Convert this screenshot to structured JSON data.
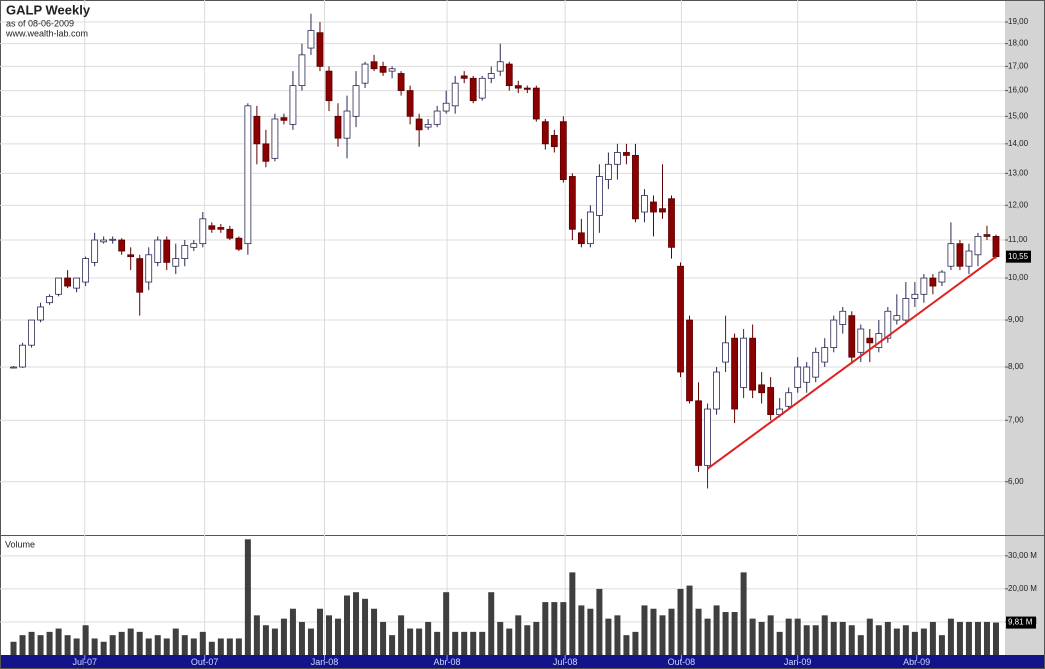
{
  "chart_data": [
    {
      "type": "candlestick",
      "title": "GALP Weekly",
      "subtitle": "as of 08-06-2009",
      "source": "www.wealth-lab.com",
      "up_color": "#ffffff",
      "down_color": "#8b0000",
      "log_scale": true,
      "grid": true,
      "xlim": [
        -1.5,
        110
      ],
      "xticks": [
        {
          "value": 7.9,
          "label": "Jul-07"
        },
        {
          "value": 21.2,
          "label": "Out-07"
        },
        {
          "value": 34.5,
          "label": "Jan-08"
        },
        {
          "value": 48.1,
          "label": "Abr-08"
        },
        {
          "value": 61.2,
          "label": "Jul-08"
        },
        {
          "value": 74.1,
          "label": "Out-08"
        },
        {
          "value": 87.0,
          "label": "Jan-09"
        },
        {
          "value": 100.2,
          "label": "Abr-09"
        }
      ],
      "ylim": [
        5.25,
        20.08
      ],
      "yticks": [
        {
          "value": 6,
          "label": "6,00"
        },
        {
          "value": 7,
          "label": "7,00"
        },
        {
          "value": 8,
          "label": "8,00"
        },
        {
          "value": 9,
          "label": "9,00"
        },
        {
          "value": 10,
          "label": "10,00"
        },
        {
          "value": 11,
          "label": "11,00"
        },
        {
          "value": 12,
          "label": "12,00"
        },
        {
          "value": 13,
          "label": "13,00"
        },
        {
          "value": 14,
          "label": "14,00"
        },
        {
          "value": 15,
          "label": "15,00"
        },
        {
          "value": 16,
          "label": "16,00"
        },
        {
          "value": 17,
          "label": "17,00"
        },
        {
          "value": 18,
          "label": "18,00"
        },
        {
          "value": 19,
          "label": "19,00"
        }
      ],
      "open": [
        7.98,
        8.0,
        8.45,
        9.0,
        9.4,
        9.6,
        10.0,
        9.75,
        9.9,
        10.4,
        10.95,
        11.0,
        11.0,
        10.6,
        10.5,
        9.9,
        10.4,
        11.0,
        10.3,
        10.5,
        10.8,
        10.9,
        11.4,
        11.35,
        11.3,
        11.05,
        10.9,
        15.0,
        14.0,
        13.5,
        14.95,
        14.7,
        16.2,
        17.8,
        18.5,
        16.8,
        15.0,
        14.2,
        15.0,
        16.3,
        17.2,
        17.0,
        16.8,
        16.7,
        16.0,
        14.9,
        14.6,
        14.7,
        15.2,
        15.4,
        16.6,
        16.5,
        15.7,
        16.5,
        16.8,
        17.1,
        16.2,
        16.1,
        16.1,
        14.8,
        14.3,
        14.8,
        12.9,
        11.2,
        10.9,
        11.7,
        12.8,
        13.3,
        13.7,
        13.6,
        11.8,
        12.1,
        11.9,
        12.2,
        10.3,
        9.0,
        7.35,
        6.25,
        7.2,
        8.1,
        8.6,
        7.6,
        8.6,
        7.65,
        7.6,
        7.1,
        7.25,
        7.6,
        7.7,
        7.8,
        8.1,
        8.4,
        8.9,
        9.1,
        8.3,
        8.6,
        8.4,
        8.6,
        9.0,
        9.0,
        9.5,
        9.6,
        10.0,
        9.9,
        10.3,
        10.9,
        10.3,
        10.6,
        11.15,
        11.1
      ],
      "high": [
        8.02,
        8.5,
        9.0,
        9.4,
        9.6,
        10.0,
        10.2,
        10.0,
        10.55,
        11.2,
        11.1,
        11.1,
        11.05,
        10.8,
        10.6,
        10.8,
        11.1,
        11.1,
        10.9,
        11.0,
        11.0,
        11.8,
        11.5,
        11.45,
        11.4,
        11.1,
        15.5,
        15.4,
        14.5,
        15.1,
        15.1,
        16.8,
        18.0,
        19.4,
        19.0,
        17.0,
        15.5,
        15.8,
        16.8,
        17.2,
        17.5,
        17.2,
        17.0,
        16.8,
        16.2,
        15.1,
        14.9,
        15.4,
        16.0,
        16.6,
        16.8,
        16.6,
        16.6,
        17.0,
        18.0,
        17.2,
        16.4,
        16.2,
        16.2,
        14.9,
        14.5,
        15.0,
        13.0,
        11.6,
        12.0,
        13.3,
        13.7,
        14.0,
        14.0,
        14.0,
        12.5,
        12.3,
        13.3,
        12.3,
        10.4,
        9.1,
        7.7,
        7.3,
        8.0,
        9.1,
        8.7,
        8.8,
        8.9,
        7.9,
        7.8,
        7.4,
        7.6,
        8.2,
        8.1,
        8.4,
        8.6,
        9.1,
        9.3,
        9.2,
        8.9,
        8.8,
        9.0,
        9.3,
        9.6,
        9.9,
        9.9,
        10.1,
        10.1,
        10.2,
        11.5,
        11.0,
        10.9,
        11.2,
        11.4,
        11.15
      ],
      "low": [
        7.97,
        7.98,
        8.4,
        8.95,
        9.35,
        9.55,
        9.75,
        9.65,
        9.8,
        10.3,
        10.9,
        10.9,
        10.6,
        10.2,
        9.1,
        9.7,
        10.3,
        10.2,
        10.1,
        10.3,
        10.7,
        10.8,
        11.2,
        11.2,
        11.0,
        10.7,
        10.6,
        13.3,
        13.2,
        13.4,
        14.7,
        14.5,
        16.0,
        17.5,
        16.8,
        15.2,
        13.9,
        13.5,
        14.6,
        16.1,
        16.8,
        16.6,
        16.5,
        15.8,
        14.7,
        13.9,
        14.5,
        14.6,
        15.1,
        15.1,
        16.3,
        15.5,
        15.6,
        16.3,
        16.6,
        16.0,
        15.9,
        15.9,
        14.8,
        13.8,
        13.7,
        12.7,
        11.0,
        10.8,
        10.8,
        11.2,
        12.5,
        12.8,
        13.3,
        11.5,
        11.5,
        11.1,
        11.6,
        10.5,
        7.8,
        7.3,
        6.15,
        5.9,
        7.1,
        7.9,
        6.95,
        7.4,
        7.4,
        7.3,
        7.0,
        7.05,
        7.2,
        7.5,
        7.5,
        7.7,
        8.0,
        8.3,
        8.7,
        8.1,
        8.1,
        8.1,
        8.3,
        8.5,
        8.9,
        8.9,
        9.3,
        9.4,
        9.6,
        9.8,
        10.2,
        10.2,
        10.1,
        10.3,
        11.0,
        10.5
      ],
      "close": [
        8.0,
        8.45,
        9.0,
        9.3,
        9.55,
        10.0,
        9.8,
        10.0,
        10.5,
        11.0,
        11.0,
        11.02,
        10.7,
        10.55,
        9.65,
        10.6,
        11.0,
        10.4,
        10.5,
        10.85,
        10.9,
        11.6,
        11.3,
        11.3,
        11.05,
        10.75,
        15.4,
        14.0,
        13.4,
        14.9,
        14.85,
        16.2,
        17.5,
        18.6,
        17.0,
        15.6,
        14.2,
        15.2,
        16.2,
        17.1,
        16.9,
        16.75,
        16.9,
        16.0,
        15.0,
        14.5,
        14.7,
        15.2,
        15.5,
        16.3,
        16.5,
        15.6,
        16.5,
        16.7,
        17.2,
        16.2,
        16.1,
        16.05,
        14.9,
        14.0,
        13.9,
        12.8,
        11.3,
        10.9,
        11.8,
        12.9,
        13.3,
        13.7,
        13.6,
        11.6,
        12.3,
        11.8,
        11.8,
        10.8,
        7.9,
        7.35,
        6.25,
        7.2,
        7.9,
        8.5,
        7.2,
        8.6,
        7.55,
        7.5,
        7.1,
        7.2,
        7.5,
        8.0,
        8.0,
        8.3,
        8.4,
        9.0,
        9.2,
        8.2,
        8.8,
        8.5,
        8.7,
        9.2,
        9.1,
        9.5,
        9.6,
        10.0,
        9.8,
        10.15,
        10.9,
        10.3,
        10.7,
        11.1,
        11.1,
        10.55
      ],
      "last_value_label": "10,55",
      "trendline": {
        "color": "#e02020",
        "x": [
          77,
          109
        ],
        "values": [
          6.2,
          10.55
        ]
      }
    },
    {
      "type": "bar",
      "title": "Volume",
      "color": "#3f3f3f",
      "grid": true,
      "ylim": [
        0,
        36
      ],
      "yticks": [
        {
          "value": 10,
          "label": "10,00 M"
        },
        {
          "value": 20,
          "label": "20,00 M"
        },
        {
          "value": 30,
          "label": "30,00 M"
        }
      ],
      "values": [
        4,
        6,
        7,
        6,
        7,
        8,
        6,
        5,
        9,
        5,
        4,
        6,
        7,
        8,
        7,
        5,
        6,
        5,
        8,
        6,
        5,
        7,
        4,
        5,
        5,
        5,
        35,
        12,
        9,
        8,
        11,
        14,
        10,
        8,
        14,
        12,
        11,
        18,
        19,
        17,
        14,
        10,
        6,
        12,
        8,
        8,
        10,
        7,
        19,
        7,
        7,
        7,
        7,
        19,
        10,
        8,
        12,
        9,
        10,
        16,
        16,
        16,
        25,
        15,
        14,
        20,
        11,
        12,
        6,
        7,
        15,
        14,
        12,
        14,
        20,
        21,
        14,
        11,
        15,
        13,
        13,
        25,
        11,
        10,
        12,
        7,
        11,
        11,
        9,
        9,
        12,
        10,
        10,
        9,
        6,
        11,
        9,
        10,
        8,
        9,
        7,
        8,
        10,
        6,
        11,
        10,
        10,
        10,
        10,
        9.81
      ],
      "last_value_label": "9,81 M"
    }
  ]
}
